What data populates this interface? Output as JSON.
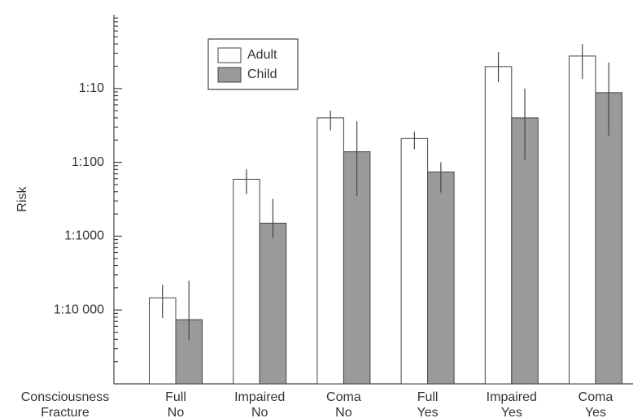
{
  "chart_data": {
    "type": "bar",
    "y_label": "Risk",
    "log_scale": true,
    "ylim": [
      1e-05,
      1
    ],
    "yticks": [
      {
        "value": 0.1,
        "label": "1:10"
      },
      {
        "value": 0.01,
        "label": "1:100"
      },
      {
        "value": 0.001,
        "label": "1:1000"
      },
      {
        "value": 0.0001,
        "label": "1:10 000"
      }
    ],
    "category_rows": [
      {
        "name": "Consciousness",
        "labels": [
          "Full",
          "Impaired",
          "Coma",
          "Full",
          "Impaired",
          "Coma"
        ]
      },
      {
        "name": "Fracture",
        "labels": [
          "No",
          "No",
          "No",
          "Yes",
          "Yes",
          "Yes"
        ]
      }
    ],
    "series": [
      {
        "name": "Adult",
        "color": "#ffffff",
        "values": [
          0.000146,
          0.0059,
          0.04,
          0.021,
          0.198,
          0.275
        ],
        "lower": [
          7.8e-05,
          0.0037,
          0.027,
          0.015,
          0.122,
          0.135
        ],
        "upper": [
          0.00022,
          0.008,
          0.05,
          0.026,
          0.31,
          0.4
        ]
      },
      {
        "name": "Child",
        "color": "#9a9a9a",
        "values": [
          7.4e-05,
          0.0015,
          0.0139,
          0.0074,
          0.04,
          0.088
        ],
        "lower": [
          3.9e-05,
          0.00095,
          0.0035,
          0.0039,
          0.0108,
          0.023
        ],
        "upper": [
          0.00025,
          0.0032,
          0.036,
          0.01,
          0.1,
          0.225
        ]
      }
    ],
    "legend": "top-left"
  }
}
